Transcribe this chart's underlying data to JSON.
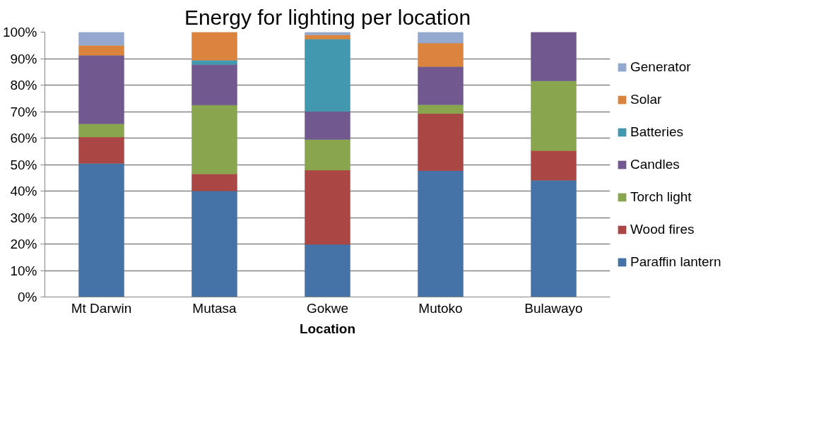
{
  "chart_data": {
    "type": "bar",
    "stacked": true,
    "title": "Energy for lighting per location",
    "xlabel": "Location",
    "categories": [
      "Mt Darwin",
      "Mutasa",
      "Gokwe",
      "Mutoko",
      "Bulawayo"
    ],
    "series": [
      {
        "name": "Paraffin lantern",
        "color": "#4572a7",
        "values": [
          50.5,
          40.1,
          19.9,
          47.7,
          44.1
        ]
      },
      {
        "name": "Wood fires",
        "color": "#aa4643",
        "values": [
          9.9,
          6.4,
          28.0,
          21.6,
          11.2
        ]
      },
      {
        "name": "Torch light",
        "color": "#89a54e",
        "values": [
          5.0,
          26.0,
          11.6,
          3.3,
          26.3
        ]
      },
      {
        "name": "Candles",
        "color": "#71588f",
        "values": [
          25.9,
          15.3,
          10.6,
          14.4,
          18.4
        ]
      },
      {
        "name": "Batteries",
        "color": "#4198af",
        "values": [
          null,
          1.6,
          27.3,
          null,
          null
        ]
      },
      {
        "name": "Solar",
        "color": "#db843d",
        "values": [
          3.7,
          10.6,
          1.6,
          8.9,
          null
        ]
      },
      {
        "name": "Generator",
        "color": "#93a9cf",
        "values": [
          5.0,
          null,
          1.0,
          4.1,
          null
        ]
      }
    ],
    "ylim": [
      0,
      100
    ],
    "yticks": [
      {
        "value": 0,
        "label": "0%"
      },
      {
        "value": 10,
        "label": "10%"
      },
      {
        "value": 20,
        "label": "20%"
      },
      {
        "value": 30,
        "label": "30%"
      },
      {
        "value": 40,
        "label": "40%"
      },
      {
        "value": 50,
        "label": "50%"
      },
      {
        "value": 60,
        "label": "60%"
      },
      {
        "value": 70,
        "label": "70%"
      },
      {
        "value": 80,
        "label": "80%"
      },
      {
        "value": 90,
        "label": "90%"
      },
      {
        "value": 100,
        "label": "100%"
      }
    ],
    "grid": "y",
    "legend": "right"
  }
}
